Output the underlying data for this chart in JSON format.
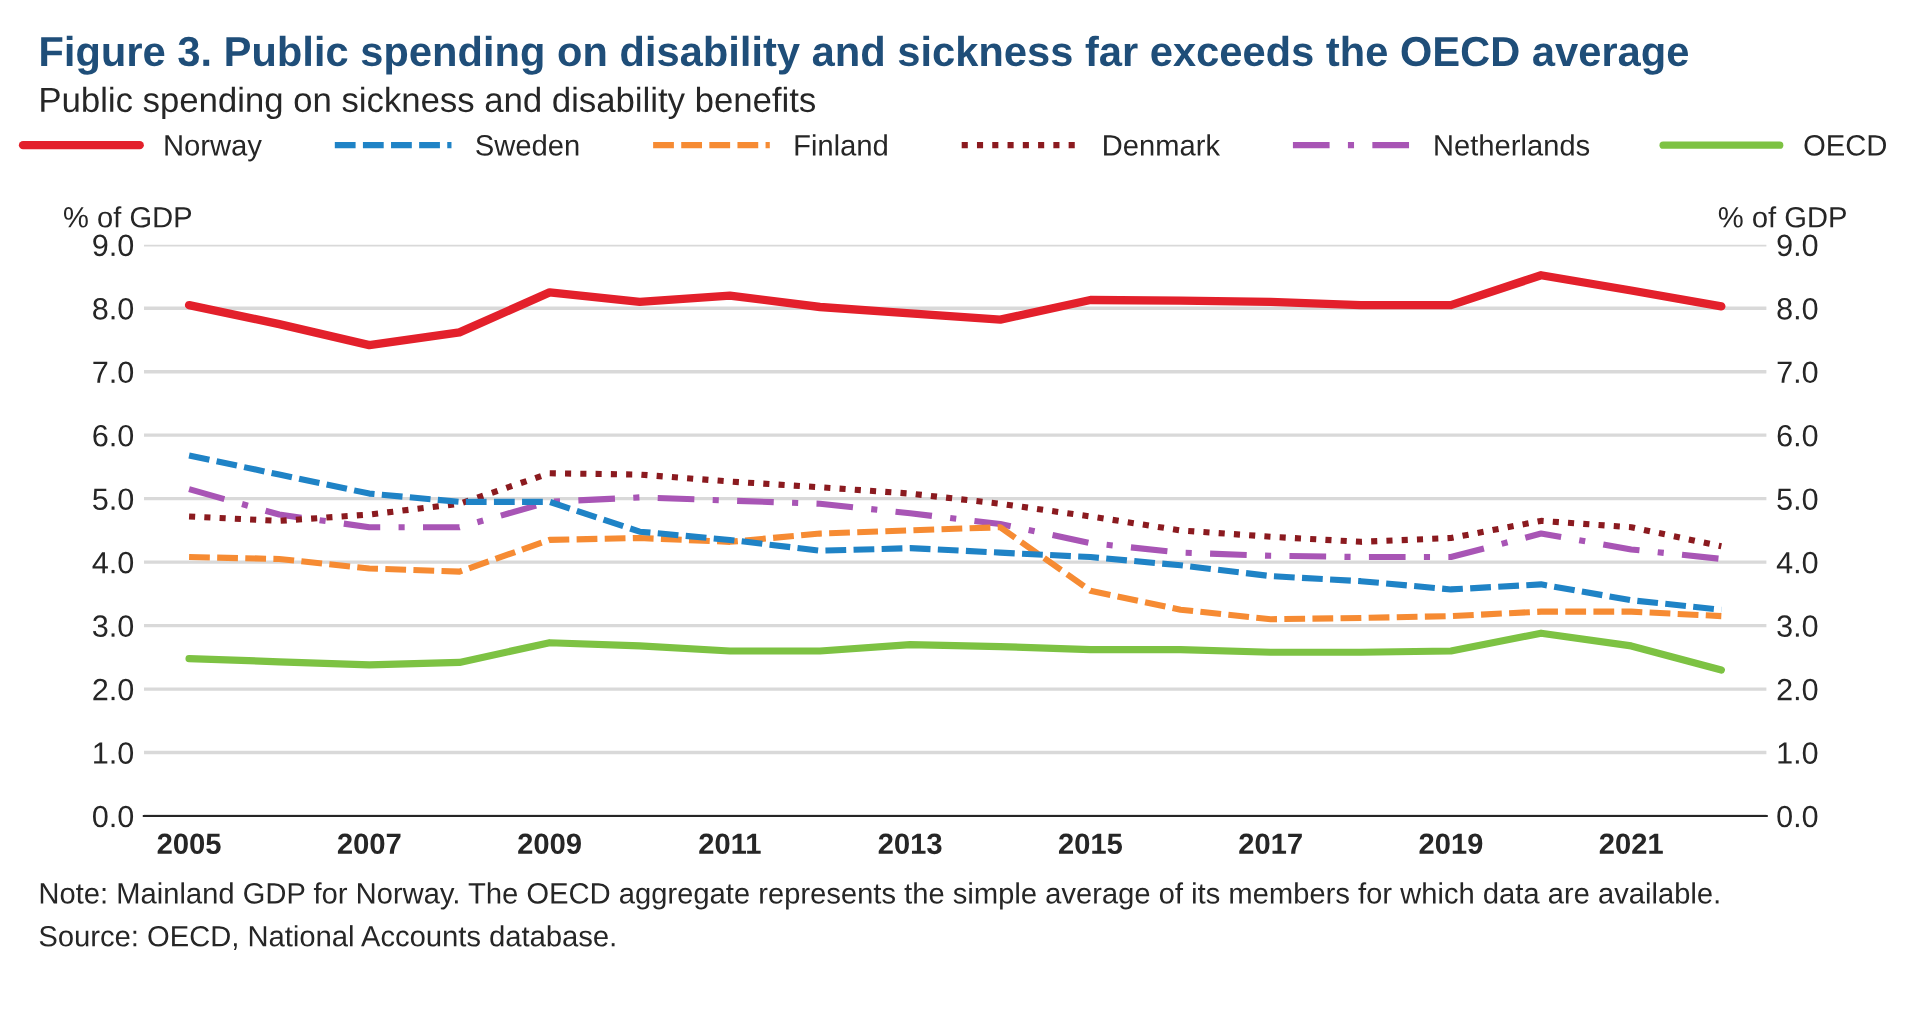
{
  "chart_data": {
    "type": "line",
    "title": "Figure 3. Public spending on disability and sickness far exceeds the OECD average",
    "subtitle": "Public spending on sickness and disability benefits",
    "ylabel": "% of GDP",
    "y2label": "% of GDP",
    "categories": [
      "2005",
      null,
      "2007",
      null,
      "2009",
      null,
      "2011",
      null,
      "2013",
      null,
      "2015",
      null,
      "2017",
      null,
      "2019",
      null,
      "2021",
      null
    ],
    "series": [
      {
        "name": "Norway",
        "color": "#e3202b",
        "line_style": "solid",
        "values": [
          8.05,
          7.75,
          7.42,
          7.62,
          8.25,
          8.1,
          8.2,
          8.02,
          7.92,
          7.82,
          8.13,
          8.12,
          8.1,
          8.05,
          8.05,
          8.52,
          8.28,
          8.03
        ]
      },
      {
        "name": "Sweden",
        "color": "#1f83c6",
        "line_style": "dashed",
        "values": [
          5.68,
          5.38,
          5.08,
          4.95,
          4.95,
          4.48,
          4.35,
          4.18,
          4.22,
          4.15,
          4.08,
          3.95,
          3.78,
          3.7,
          3.57,
          3.65,
          3.4,
          3.25
        ]
      },
      {
        "name": "Finland",
        "color": "#f68b33",
        "line_style": "dashed",
        "values": [
          4.08,
          4.05,
          3.9,
          3.85,
          4.35,
          4.38,
          4.32,
          4.45,
          4.5,
          4.55,
          3.55,
          3.25,
          3.1,
          3.12,
          3.15,
          3.22,
          3.22,
          3.15
        ]
      },
      {
        "name": "Denmark",
        "color": "#8b1a1f",
        "line_style": "dotted",
        "values": [
          4.72,
          4.65,
          4.75,
          4.92,
          5.4,
          5.38,
          5.27,
          5.18,
          5.08,
          4.92,
          4.72,
          4.5,
          4.4,
          4.32,
          4.38,
          4.65,
          4.55,
          4.25
        ]
      },
      {
        "name": "Netherlands",
        "color": "#a855b5",
        "line_style": "dashdot",
        "values": [
          5.15,
          4.75,
          4.55,
          4.55,
          4.95,
          5.02,
          4.97,
          4.92,
          4.77,
          4.6,
          4.3,
          4.15,
          4.1,
          4.08,
          4.08,
          4.45,
          4.2,
          4.05
        ]
      },
      {
        "name": "OECD",
        "color": "#7dc243",
        "line_style": "solid",
        "values": [
          2.48,
          2.43,
          2.38,
          2.42,
          2.73,
          2.68,
          2.6,
          2.6,
          2.7,
          2.67,
          2.62,
          2.62,
          2.58,
          2.58,
          2.6,
          2.88,
          2.68,
          2.3
        ]
      }
    ],
    "ylim": [
      0,
      9
    ],
    "yticks": [
      {
        "value": 0,
        "label": "0.0"
      },
      {
        "value": 1,
        "label": "1.0"
      },
      {
        "value": 2,
        "label": "2.0"
      },
      {
        "value": 3,
        "label": "3.0"
      },
      {
        "value": 4,
        "label": "4.0"
      },
      {
        "value": 5,
        "label": "5.0"
      },
      {
        "value": 6,
        "label": "6.0"
      },
      {
        "value": 7,
        "label": "7.0"
      },
      {
        "value": 8,
        "label": "8.0"
      },
      {
        "value": 9,
        "label": "9.0"
      }
    ],
    "y2lim": [
      0,
      9
    ],
    "y2ticks": [
      {
        "value": 0,
        "label": "0.0"
      },
      {
        "value": 1,
        "label": "1.0"
      },
      {
        "value": 2,
        "label": "2.0"
      },
      {
        "value": 3,
        "label": "3.0"
      },
      {
        "value": 4,
        "label": "4.0"
      },
      {
        "value": 5,
        "label": "5.0"
      },
      {
        "value": 6,
        "label": "6.0"
      },
      {
        "value": 7,
        "label": "7.0"
      },
      {
        "value": 8,
        "label": "8.0"
      },
      {
        "value": 9,
        "label": "9.0"
      }
    ],
    "grid": "y",
    "legend": "top",
    "annotations": [
      "Note: Mainland GDP for Norway. The OECD aggregate represents the simple average of its members for which data are available.",
      "Source: OECD, National Accounts database."
    ]
  }
}
